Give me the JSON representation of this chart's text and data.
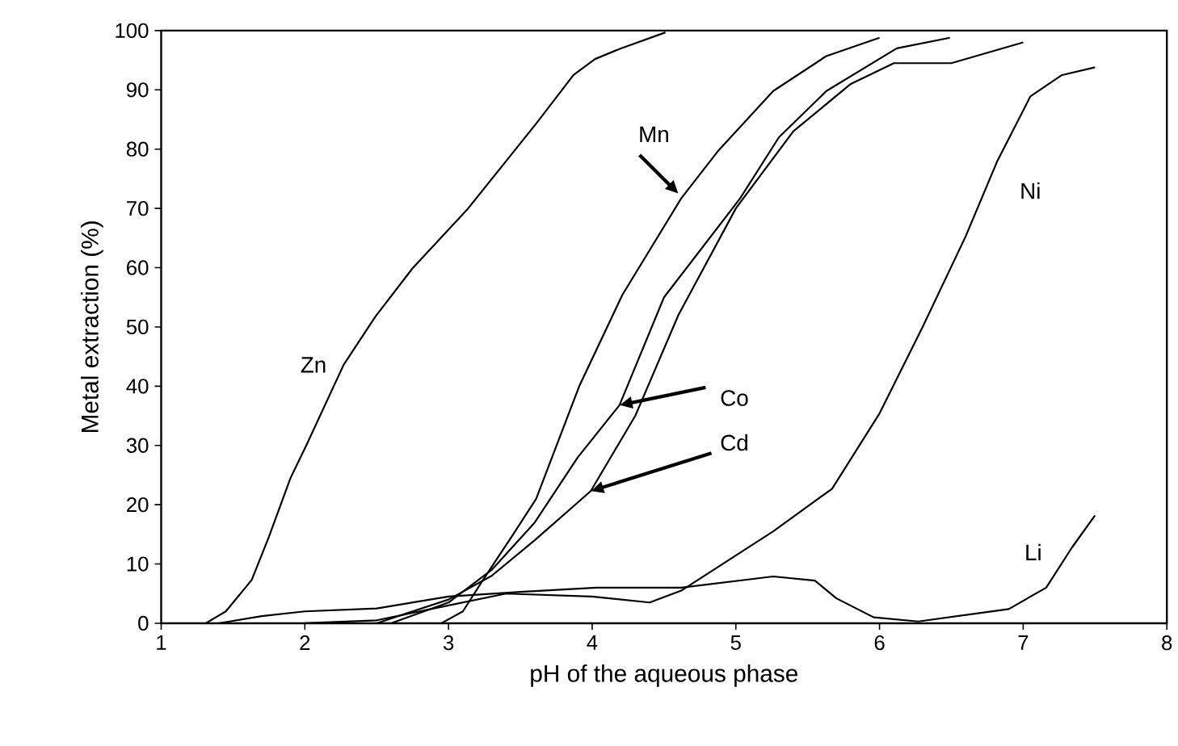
{
  "chart_data": {
    "type": "line",
    "xlabel": "pH of the aqueous phase",
    "ylabel": "Metal extraction (%)",
    "xlim": [
      1,
      8
    ],
    "ylim": [
      0,
      100
    ],
    "xticks": [
      1,
      2,
      3,
      4,
      5,
      6,
      7,
      8
    ],
    "yticks": [
      0,
      10,
      20,
      30,
      40,
      50,
      60,
      70,
      80,
      90,
      100
    ],
    "marker": "none",
    "line_style": "solid",
    "series": [
      {
        "color": "#000000",
        "x": [
          1.31,
          1.45,
          1.63,
          1.75,
          1.9,
          2.01,
          2.27,
          2.49,
          2.75,
          3.13,
          3.61,
          3.87,
          4.02,
          4.2,
          4.51
        ],
        "values": [
          0,
          2,
          7.3,
          14.6,
          24.5,
          30,
          43.6,
          51.7,
          59.9,
          69.8,
          84.3,
          92.5,
          95.2,
          97,
          99.7
        ]
      },
      {
        "color": "#000000",
        "x": [
          2.95,
          3.1,
          3.24,
          3.45,
          3.61,
          3.91,
          4.21,
          4.62,
          4.88,
          5.26,
          5.63,
          6.0
        ],
        "values": [
          0,
          2,
          7.3,
          15,
          21,
          40,
          55.4,
          71.7,
          79.8,
          89.8,
          95.7,
          98.8
        ]
      },
      {
        "color": "#000000",
        "x": [
          2.6,
          3.0,
          3.3,
          3.6,
          3.9,
          4.19,
          4.5,
          5.03,
          5.3,
          5.63,
          6.12,
          6.49
        ],
        "values": [
          0,
          3.5,
          9,
          17,
          28,
          36.8,
          55,
          71.7,
          82,
          89.8,
          97,
          98.8
        ]
      },
      {
        "color": "#000000",
        "x": [
          2.5,
          3.0,
          3.3,
          3.6,
          3.99,
          4.3,
          4.6,
          5.0,
          5.4,
          5.8,
          6.1,
          6.5,
          7.0
        ],
        "values": [
          0,
          4,
          8,
          14,
          22.3,
          35,
          52,
          70,
          83,
          91,
          94.5,
          94.5,
          98
        ]
      },
      {
        "color": "#000000",
        "x": [
          2.0,
          2.5,
          3.0,
          3.4,
          4.0,
          4.4,
          4.62,
          5.26,
          5.67,
          6.0,
          6.3,
          6.6,
          6.82,
          7.05,
          7.27,
          7.5
        ],
        "values": [
          0,
          0.5,
          3,
          5,
          4.5,
          3.5,
          5.5,
          15.5,
          22.7,
          35.4,
          50,
          65.3,
          78,
          88.9,
          92.5,
          93.8
        ]
      },
      {
        "color": "#000000",
        "x": [
          1.4,
          1.7,
          2.0,
          2.5,
          3.0,
          3.5,
          4.03,
          4.62,
          5.26,
          5.55,
          5.7,
          5.96,
          6.27,
          6.9,
          7.16,
          7.34,
          7.5
        ],
        "values": [
          0,
          1.2,
          2,
          2.5,
          4.5,
          5.3,
          6,
          6,
          7.9,
          7.2,
          4.2,
          1,
          0.3,
          2.4,
          6,
          12.8,
          18.2
        ]
      }
    ],
    "annotations": [
      "Zn",
      {
        "text": "Mn",
        "x": 4.6,
        "y": 72.5
      },
      {
        "text": "Co",
        "x": 4.19,
        "y": 36.8
      },
      {
        "text": "Cd",
        "x": 3.99,
        "y": 22.3
      },
      "Ni",
      "Li"
    ]
  }
}
